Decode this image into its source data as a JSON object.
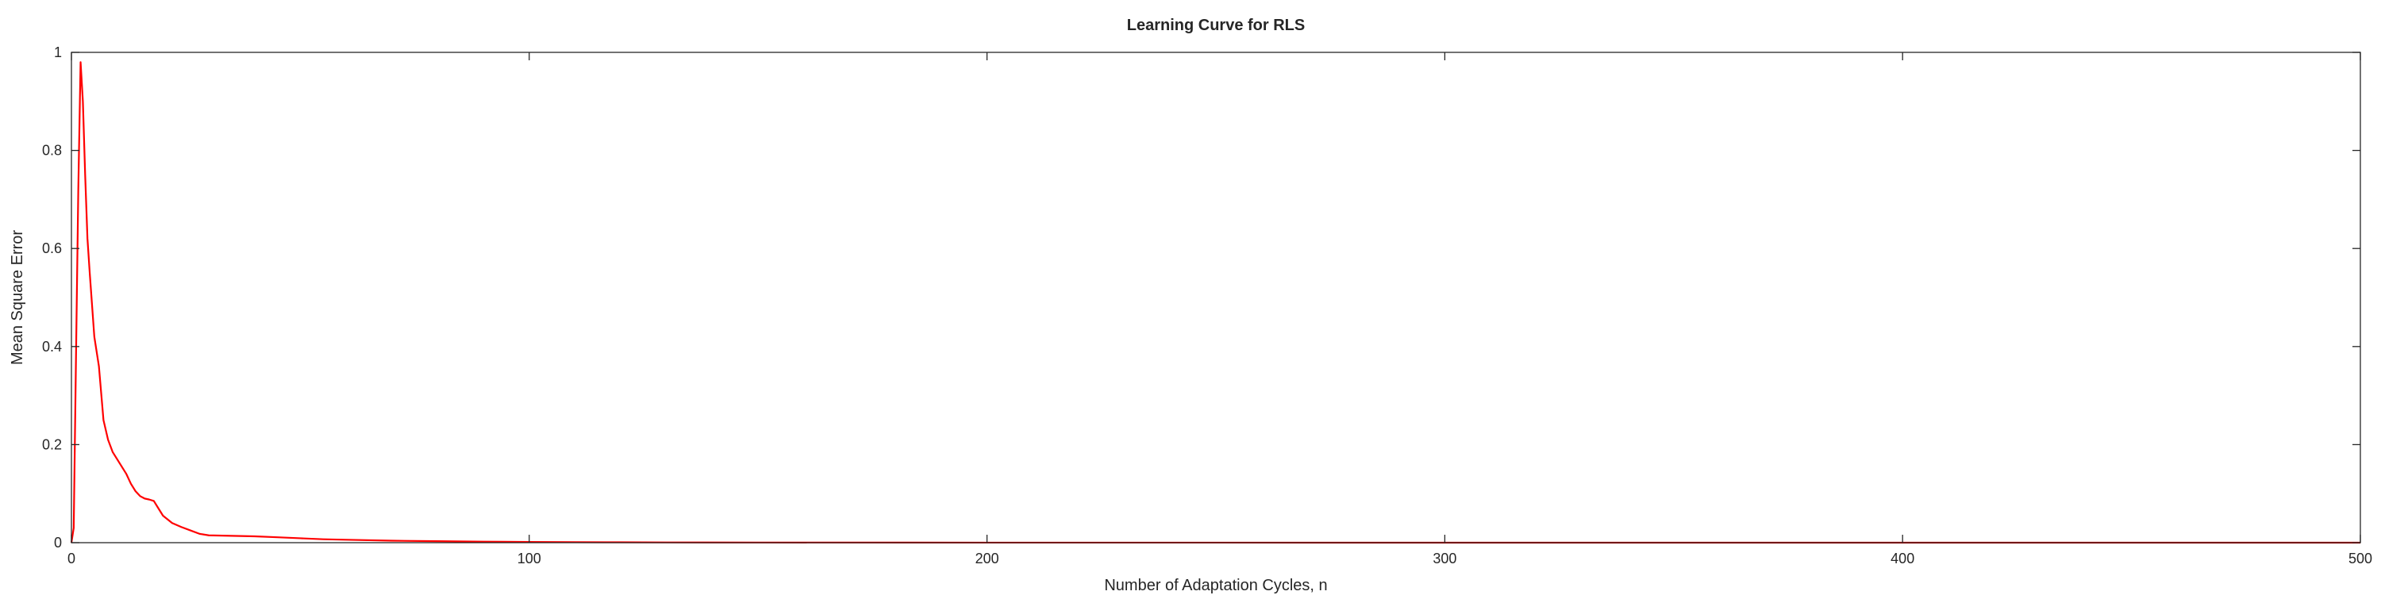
{
  "chart_data": {
    "type": "line",
    "title": "Learning Curve for RLS",
    "xlabel": "Number of Adaptation Cycles, n",
    "ylabel": "Mean Square Error",
    "xlim": [
      0,
      500
    ],
    "ylim": [
      0,
      1
    ],
    "xticks": [
      0,
      100,
      200,
      300,
      400,
      500
    ],
    "yticks": [
      0,
      0.2,
      0.4,
      0.6,
      0.8,
      1
    ],
    "xtick_labels": [
      "0",
      "100",
      "200",
      "300",
      "400",
      "500"
    ],
    "ytick_labels": [
      "0",
      "0.2",
      "0.4",
      "0.6",
      "0.8",
      "1"
    ],
    "grid": false,
    "legend": "none",
    "series": [
      {
        "color": "#ff0000",
        "x": [
          0,
          0.5,
          1,
          1.5,
          2,
          2.5,
          3,
          3.5,
          4,
          5,
          6,
          7,
          8,
          9,
          10,
          11,
          12,
          13,
          14,
          15,
          16,
          17,
          18,
          19,
          20,
          22,
          24,
          26,
          28,
          30,
          35,
          40,
          45,
          50,
          55,
          60,
          70,
          80,
          90,
          100,
          110,
          120,
          130,
          150,
          200,
          250,
          300,
          350,
          400,
          450,
          500
        ],
        "y": [
          0.0,
          0.03,
          0.38,
          0.72,
          0.98,
          0.9,
          0.75,
          0.62,
          0.55,
          0.42,
          0.36,
          0.25,
          0.21,
          0.185,
          0.17,
          0.155,
          0.14,
          0.12,
          0.105,
          0.095,
          0.09,
          0.088,
          0.085,
          0.07,
          0.055,
          0.04,
          0.032,
          0.025,
          0.018,
          0.015,
          0.014,
          0.013,
          0.011,
          0.009,
          0.007,
          0.006,
          0.004,
          0.003,
          0.002,
          0.0015,
          0.001,
          0.0008,
          0.0005,
          0.0003,
          0.0001,
          0.0001,
          0.0,
          0.0,
          0.0,
          0.0,
          0.0
        ]
      }
    ]
  }
}
